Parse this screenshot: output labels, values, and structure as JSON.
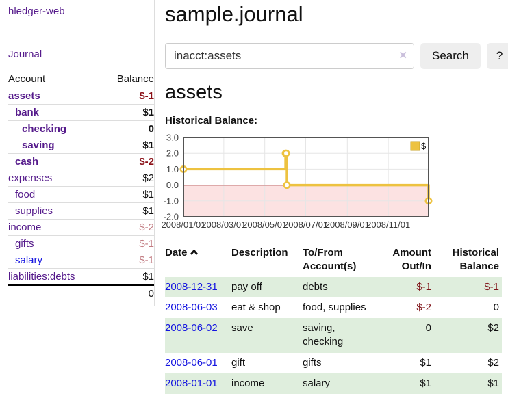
{
  "app": {
    "title": "hledger-web"
  },
  "nav": {
    "journal_label": "Journal"
  },
  "accounts_panel": {
    "headers": {
      "account": "Account",
      "balance": "Balance"
    },
    "rows": [
      {
        "name": "assets",
        "depth": 1,
        "balance": "$-1",
        "bold": true,
        "name_style": "purple",
        "balance_style": "neg-strong"
      },
      {
        "name": "bank",
        "depth": 2,
        "balance": "$1",
        "bold": true,
        "name_style": "purple",
        "balance_style": "normal"
      },
      {
        "name": "checking",
        "depth": 3,
        "balance": "0",
        "bold": true,
        "name_style": "purple",
        "balance_style": "normal"
      },
      {
        "name": "saving",
        "depth": 3,
        "balance": "$1",
        "bold": true,
        "name_style": "purple",
        "balance_style": "normal"
      },
      {
        "name": "cash",
        "depth": 2,
        "balance": "$-2",
        "bold": true,
        "name_style": "purple",
        "balance_style": "neg-strong"
      },
      {
        "name": "expenses",
        "depth": 1,
        "balance": "$2",
        "bold": false,
        "name_style": "purple",
        "balance_style": "normal"
      },
      {
        "name": "food",
        "depth": 2,
        "balance": "$1",
        "bold": false,
        "name_style": "purple",
        "balance_style": "normal"
      },
      {
        "name": "supplies",
        "depth": 2,
        "balance": "$1",
        "bold": false,
        "name_style": "purple",
        "balance_style": "normal"
      },
      {
        "name": "income",
        "depth": 1,
        "balance": "$-2",
        "bold": false,
        "name_style": "purple",
        "balance_style": "neg-soft"
      },
      {
        "name": "gifts",
        "depth": 2,
        "balance": "$-1",
        "bold": false,
        "name_style": "purple",
        "balance_style": "neg-soft"
      },
      {
        "name": "salary",
        "depth": 2,
        "balance": "$-1",
        "bold": false,
        "name_style": "blue",
        "balance_style": "neg-soft"
      },
      {
        "name": "liabilities:debts",
        "depth": 1,
        "balance": "$1",
        "bold": false,
        "name_style": "purple",
        "balance_style": "normal"
      }
    ],
    "total": "0"
  },
  "header": {
    "title": "sample.journal"
  },
  "search": {
    "value": "inacct:assets",
    "button_label": "Search",
    "help_label": "?"
  },
  "icons": {
    "clear_search": "✕",
    "sort_ascending": "chevron-up"
  },
  "account_page": {
    "title": "assets",
    "chart_label": "Historical Balance:"
  },
  "chart_data": {
    "type": "line",
    "step": true,
    "title": "Historical Balance",
    "series": [
      {
        "name": "$",
        "color": "#edc240",
        "points": [
          [
            "2008-01-01",
            1
          ],
          [
            "2008-06-01",
            2
          ],
          [
            "2008-06-02",
            2
          ],
          [
            "2008-06-03",
            0
          ],
          [
            "2008-12-31",
            -1
          ]
        ]
      }
    ],
    "x_range": [
      "2008-01-01",
      "2008-12-31"
    ],
    "y_range": [
      -2,
      3
    ],
    "y_ticks": [
      3,
      2,
      1,
      0,
      -1,
      -2
    ],
    "y_tick_labels": [
      "3.0",
      "2.0",
      "1.0",
      "0.0",
      "-1.0",
      "-2.0"
    ],
    "x_ticks": [
      "2008-01-01",
      "2008-03-01",
      "2008-05-01",
      "2008-07-01",
      "2008-09-01",
      "2008-11-01"
    ],
    "x_tick_labels": [
      "2008/01/01",
      "2008/03/01",
      "2008/05/01",
      "2008/07/01",
      "2008/09/01",
      "2008/11/01"
    ],
    "legend": {
      "label": "$",
      "position": "top-right"
    },
    "grid": true,
    "grid_color": "#e6e6e6",
    "border_color": "#545454",
    "negative_region_color": "#fce2e2",
    "zero_line_color": "#8b0000",
    "tick_label_color": "#3a3a3a"
  },
  "register": {
    "headers": {
      "date": "Date",
      "description": "Description",
      "accounts": "To/From Account(s)",
      "amount": "Amount Out/In",
      "balance": "Historical Balance"
    },
    "rows": [
      {
        "date": "2008-12-31",
        "description": "pay off",
        "accounts": "debts",
        "amount": "$-1",
        "amount_negative": true,
        "balance": "$-1",
        "balance_negative": true
      },
      {
        "date": "2008-06-03",
        "description": "eat & shop",
        "accounts": "food, supplies",
        "amount": "$-2",
        "amount_negative": true,
        "balance": "0",
        "balance_negative": false
      },
      {
        "date": "2008-06-02",
        "description": "save",
        "accounts": "saving, checking",
        "amount": "0",
        "amount_negative": false,
        "balance": "$2",
        "balance_negative": false
      },
      {
        "date": "2008-06-01",
        "description": "gift",
        "accounts": "gifts",
        "amount": "$1",
        "amount_negative": false,
        "balance": "$2",
        "balance_negative": false
      },
      {
        "date": "2008-01-01",
        "description": "income",
        "accounts": "salary",
        "amount": "$1",
        "amount_negative": false,
        "balance": "$1",
        "balance_negative": false
      }
    ]
  }
}
